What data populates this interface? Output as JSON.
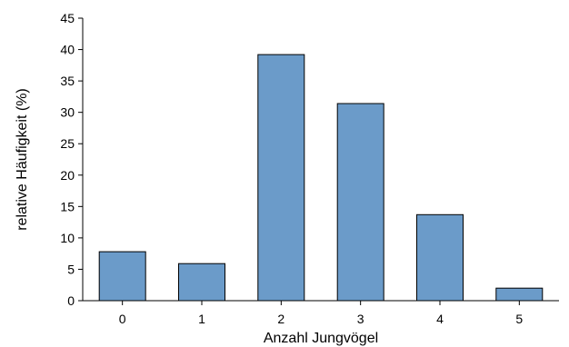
{
  "chart_data": {
    "type": "bar",
    "categories": [
      "0",
      "1",
      "2",
      "3",
      "4",
      "5"
    ],
    "values": [
      7.8,
      5.9,
      39.2,
      31.4,
      13.7,
      2.0
    ],
    "xlabel": "Anzahl Jungvögel",
    "ylabel": "relative Häufigkeit (%)",
    "ylim": [
      0,
      45
    ],
    "yticks": [
      "0",
      "5",
      "10",
      "15",
      "20",
      "25",
      "30",
      "35",
      "40",
      "45"
    ],
    "grid": false,
    "legend": "none",
    "bar_color": "#6b9bc9",
    "bar_outline": "#000000"
  }
}
